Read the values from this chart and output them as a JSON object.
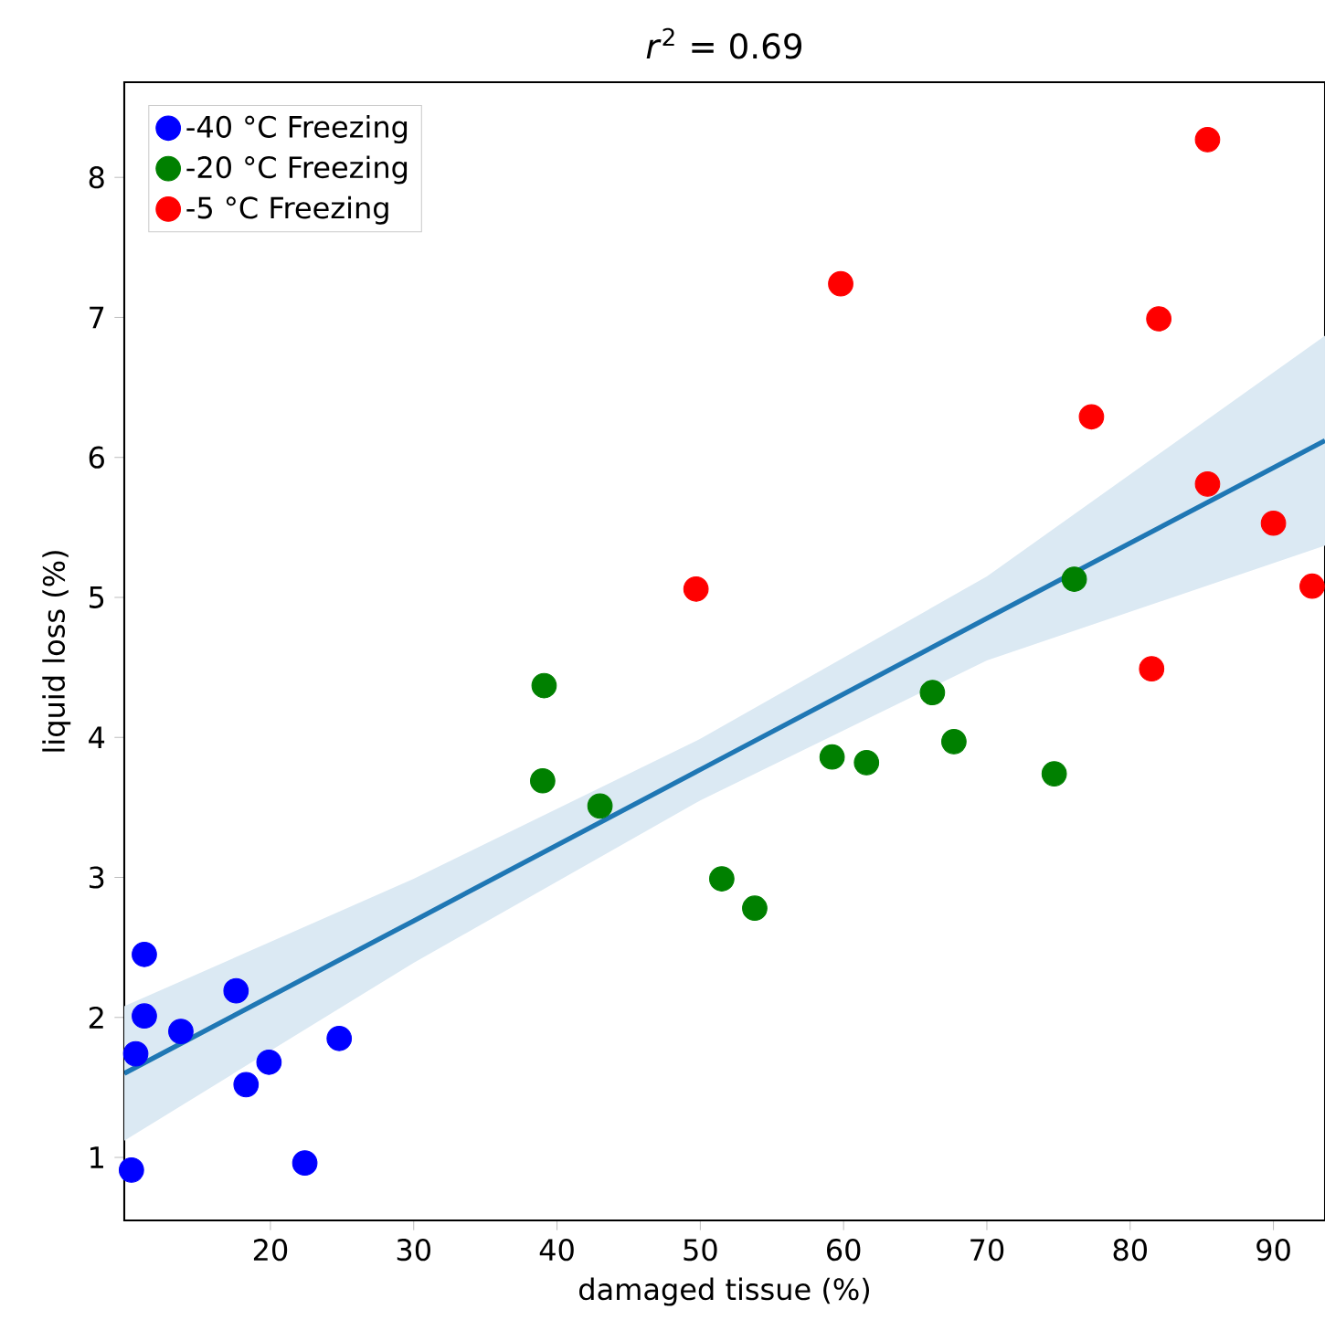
{
  "chart_data": {
    "type": "scatter",
    "title": "*r*$^{2}$ = 0.69",
    "xlabel": "damaged tissue (%)",
    "ylabel": "liquid loss (%)",
    "xlim": [
      9.8,
      93.6
    ],
    "ylim": [
      0.55,
      8.68
    ],
    "xticks": [
      20,
      30,
      40,
      50,
      60,
      70,
      80,
      90
    ],
    "yticks": [
      1,
      2,
      3,
      4,
      5,
      6,
      7,
      8
    ],
    "legend": "top left",
    "grid": false,
    "series": [
      {
        "name": "-40 °C Freezing",
        "marker": "circle",
        "color": "#0000ff",
        "x": [
          10.3,
          11.2,
          11.2,
          10.6,
          13.75,
          17.6,
          18.3,
          19.9,
          22.4,
          24.8
        ],
        "values": [
          0.91,
          2.45,
          2.01,
          1.74,
          1.9,
          2.19,
          1.52,
          1.68,
          0.96,
          1.85
        ]
      },
      {
        "name": "-20 °C Freezing",
        "marker": "circle",
        "color": "#008000",
        "x": [
          39.1,
          39.0,
          43.0,
          51.5,
          53.8,
          59.2,
          61.6,
          66.2,
          67.7,
          74.7,
          76.1
        ],
        "values": [
          4.37,
          3.69,
          3.51,
          2.99,
          2.78,
          3.86,
          3.82,
          4.32,
          3.97,
          3.74,
          5.13
        ]
      },
      {
        "name": "-5 °C Freezing",
        "marker": "circle",
        "color": "#ff0000",
        "x": [
          85.4,
          59.8,
          82.0,
          77.3,
          85.4,
          49.7,
          90.0,
          81.5,
          92.7
        ],
        "values": [
          8.27,
          7.24,
          6.99,
          6.29,
          5.81,
          5.06,
          5.53,
          4.49,
          5.08
        ]
      },
      {
        "type": "line",
        "marker": "none",
        "color": "#1f77b4",
        "x": [
          9.8,
          30,
          50,
          70,
          93.6
        ],
        "values": [
          1.6,
          2.69,
          3.77,
          4.85,
          6.12
        ],
        "lower": [
          1.12,
          2.39,
          3.55,
          4.55,
          5.37
        ],
        "upper": [
          2.08,
          2.99,
          3.99,
          5.15,
          6.87
        ]
      }
    ]
  }
}
